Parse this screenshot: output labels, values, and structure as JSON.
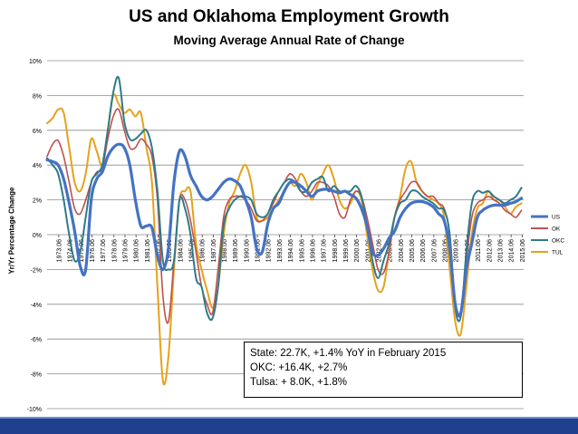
{
  "chart_data": {
    "type": "line",
    "title": "US and Oklahoma Employment Growth",
    "subtitle": "Moving Average Annual Rate of Change",
    "ylabel": "Yr/Yr Percentage Change",
    "ylim": [
      -0.1,
      0.1
    ],
    "yticks": [
      "10%",
      "8%",
      "6%",
      "4%",
      "2%",
      "0%",
      "-2%",
      "-4%",
      "-6%",
      "-8%",
      "-10%"
    ],
    "xlim": [
      1972.0,
      2015.2
    ],
    "xticks": [
      "1973.06",
      "1974.06",
      "1975.06",
      "1976.06",
      "1977.06",
      "1978.06",
      "1979.06",
      "1980.06",
      "1981.06",
      "1982.06",
      "1983.06",
      "1984.06",
      "1985.06",
      "1986.06",
      "1987.06",
      "1988.06",
      "1989.06",
      "1990.06",
      "1991.06",
      "1992.06",
      "1993.06",
      "1994.06",
      "1995.06",
      "1996.06",
      "1997.06",
      "1998.06",
      "1999.06",
      "2000.06",
      "2001.06",
      "2002.06",
      "2003.06",
      "2004.06",
      "2005.06",
      "2006.06",
      "2007.06",
      "2008.06",
      "2009.06",
      "2010.06",
      "2011.06",
      "2012.06",
      "2013.06",
      "2014.06",
      "2015.06"
    ],
    "grid": true,
    "legend_position": "right",
    "series": [
      {
        "name": "US",
        "color": "#4472c4",
        "x": [
          1972.0,
          1972.5,
          1973.0,
          1973.5,
          1974.0,
          1974.5,
          1975.0,
          1975.5,
          1976.0,
          1976.5,
          1977.0,
          1977.5,
          1978.0,
          1978.5,
          1979.0,
          1979.5,
          1980.0,
          1980.5,
          1981.0,
          1981.5,
          1982.0,
          1982.5,
          1983.0,
          1983.5,
          1984.0,
          1984.5,
          1985.0,
          1985.5,
          1986.0,
          1986.5,
          1987.0,
          1987.5,
          1988.0,
          1988.5,
          1989.0,
          1989.5,
          1990.0,
          1990.5,
          1991.0,
          1991.5,
          1992.0,
          1992.5,
          1993.0,
          1993.5,
          1994.0,
          1994.5,
          1995.0,
          1995.5,
          1996.0,
          1996.5,
          1997.0,
          1997.5,
          1998.0,
          1998.5,
          1999.0,
          1999.5,
          2000.0,
          2000.5,
          2001.0,
          2001.5,
          2002.0,
          2002.5,
          2003.0,
          2003.5,
          2004.0,
          2004.5,
          2005.0,
          2005.5,
          2006.0,
          2006.5,
          2007.0,
          2007.5,
          2008.0,
          2008.5,
          2009.0,
          2009.5,
          2010.0,
          2010.5,
          2011.0,
          2011.5,
          2012.0,
          2012.5,
          2013.0,
          2013.5,
          2014.0,
          2014.5,
          2015.0
        ],
        "values": [
          0.043,
          0.042,
          0.04,
          0.032,
          0.018,
          0.002,
          -0.018,
          -0.02,
          0.02,
          0.032,
          0.036,
          0.045,
          0.05,
          0.052,
          0.05,
          0.04,
          0.02,
          0.005,
          0.005,
          0.004,
          -0.012,
          -0.02,
          -0.008,
          0.03,
          0.048,
          0.045,
          0.034,
          0.028,
          0.022,
          0.02,
          0.022,
          0.026,
          0.03,
          0.032,
          0.031,
          0.028,
          0.02,
          0.01,
          -0.008,
          -0.01,
          0.006,
          0.015,
          0.018,
          0.025,
          0.03,
          0.03,
          0.028,
          0.025,
          0.022,
          0.025,
          0.026,
          0.026,
          0.025,
          0.024,
          0.025,
          0.023,
          0.021,
          0.015,
          0.005,
          -0.01,
          -0.012,
          -0.008,
          -0.002,
          0.002,
          0.01,
          0.015,
          0.018,
          0.019,
          0.019,
          0.018,
          0.016,
          0.012,
          0.008,
          -0.008,
          -0.04,
          -0.045,
          -0.02,
          -0.005,
          0.01,
          0.014,
          0.016,
          0.017,
          0.017,
          0.017,
          0.018,
          0.019,
          0.021
        ]
      },
      {
        "name": "OK",
        "color": "#c0504d",
        "x": [
          1972.0,
          1972.5,
          1973.0,
          1973.5,
          1974.0,
          1974.5,
          1975.0,
          1975.5,
          1976.0,
          1976.5,
          1977.0,
          1977.5,
          1978.0,
          1978.5,
          1979.0,
          1979.5,
          1980.0,
          1980.5,
          1981.0,
          1981.5,
          1982.0,
          1982.5,
          1983.0,
          1983.5,
          1984.0,
          1984.5,
          1985.0,
          1985.5,
          1986.0,
          1986.5,
          1987.0,
          1987.5,
          1988.0,
          1988.5,
          1989.0,
          1989.5,
          1990.0,
          1990.5,
          1991.0,
          1991.5,
          1992.0,
          1992.5,
          1993.0,
          1993.5,
          1994.0,
          1994.5,
          1995.0,
          1995.5,
          1996.0,
          1996.5,
          1997.0,
          1997.5,
          1998.0,
          1998.5,
          1999.0,
          1999.5,
          2000.0,
          2000.5,
          2001.0,
          2001.5,
          2002.0,
          2002.5,
          2003.0,
          2003.5,
          2004.0,
          2004.5,
          2005.0,
          2005.5,
          2006.0,
          2006.5,
          2007.0,
          2007.5,
          2008.0,
          2008.5,
          2009.0,
          2009.5,
          2010.0,
          2010.5,
          2011.0,
          2011.5,
          2012.0,
          2012.5,
          2013.0,
          2013.5,
          2014.0,
          2014.5,
          2015.0
        ],
        "values": [
          0.045,
          0.052,
          0.054,
          0.045,
          0.03,
          0.015,
          0.012,
          0.02,
          0.03,
          0.036,
          0.038,
          0.055,
          0.068,
          0.072,
          0.06,
          0.05,
          0.05,
          0.055,
          0.052,
          0.045,
          0.02,
          -0.035,
          -0.05,
          -0.015,
          0.02,
          0.02,
          0.008,
          -0.01,
          -0.03,
          -0.04,
          -0.045,
          -0.02,
          0.01,
          0.02,
          0.022,
          0.022,
          0.02,
          0.015,
          0.008,
          0.008,
          0.012,
          0.018,
          0.025,
          0.03,
          0.035,
          0.032,
          0.025,
          0.022,
          0.025,
          0.03,
          0.03,
          0.028,
          0.022,
          0.012,
          0.01,
          0.02,
          0.025,
          0.022,
          0.01,
          -0.005,
          -0.02,
          -0.022,
          -0.01,
          0.01,
          0.02,
          0.025,
          0.03,
          0.03,
          0.025,
          0.022,
          0.022,
          0.018,
          0.015,
          0.0,
          -0.04,
          -0.045,
          -0.015,
          0.01,
          0.018,
          0.02,
          0.022,
          0.02,
          0.018,
          0.014,
          0.012,
          0.01,
          0.014
        ]
      },
      {
        "name": "OKC",
        "color": "#2e7b8a",
        "x": [
          1972.0,
          1972.5,
          1973.0,
          1973.5,
          1974.0,
          1974.5,
          1975.0,
          1975.5,
          1976.0,
          1976.5,
          1977.0,
          1977.5,
          1978.0,
          1978.5,
          1979.0,
          1979.5,
          1980.0,
          1980.5,
          1981.0,
          1981.5,
          1982.0,
          1982.5,
          1983.0,
          1983.5,
          1984.0,
          1984.5,
          1985.0,
          1985.5,
          1986.0,
          1986.5,
          1987.0,
          1987.5,
          1988.0,
          1988.5,
          1989.0,
          1989.5,
          1990.0,
          1990.5,
          1991.0,
          1991.5,
          1992.0,
          1992.5,
          1993.0,
          1993.5,
          1994.0,
          1994.5,
          1995.0,
          1995.5,
          1996.0,
          1996.5,
          1997.0,
          1997.5,
          1998.0,
          1998.5,
          1999.0,
          1999.5,
          2000.0,
          2000.5,
          2001.0,
          2001.5,
          2002.0,
          2002.5,
          2003.0,
          2003.5,
          2004.0,
          2004.5,
          2005.0,
          2005.5,
          2006.0,
          2006.5,
          2007.0,
          2007.5,
          2008.0,
          2008.5,
          2009.0,
          2009.5,
          2010.0,
          2010.5,
          2011.0,
          2011.5,
          2012.0,
          2012.5,
          2013.0,
          2013.5,
          2014.0,
          2014.5,
          2015.0
        ],
        "values": [
          0.044,
          0.04,
          0.035,
          0.02,
          0.0,
          -0.015,
          -0.01,
          0.01,
          0.03,
          0.035,
          0.04,
          0.06,
          0.082,
          0.09,
          0.065,
          0.055,
          0.055,
          0.058,
          0.06,
          0.05,
          0.025,
          -0.015,
          -0.02,
          -0.015,
          0.02,
          0.015,
          0.0,
          -0.025,
          -0.03,
          -0.045,
          -0.048,
          -0.03,
          0.005,
          0.015,
          0.02,
          0.022,
          0.022,
          0.02,
          0.012,
          0.01,
          0.012,
          0.02,
          0.025,
          0.03,
          0.032,
          0.03,
          0.025,
          0.025,
          0.03,
          0.032,
          0.033,
          0.025,
          0.028,
          0.025,
          0.025,
          0.025,
          0.028,
          0.022,
          0.005,
          -0.015,
          -0.025,
          -0.015,
          -0.005,
          0.01,
          0.018,
          0.02,
          0.025,
          0.025,
          0.022,
          0.02,
          0.018,
          0.015,
          0.014,
          0.0,
          -0.042,
          -0.047,
          -0.01,
          0.018,
          0.025,
          0.024,
          0.025,
          0.022,
          0.02,
          0.018,
          0.02,
          0.022,
          0.027
        ]
      },
      {
        "name": "TUL",
        "color": "#e5a21a",
        "x": [
          1972.0,
          1972.5,
          1973.0,
          1973.5,
          1974.0,
          1974.5,
          1975.0,
          1975.5,
          1976.0,
          1976.5,
          1977.0,
          1977.5,
          1978.0,
          1978.5,
          1979.0,
          1979.5,
          1980.0,
          1980.5,
          1981.0,
          1981.5,
          1982.0,
          1982.5,
          1983.0,
          1983.5,
          1984.0,
          1984.5,
          1985.0,
          1985.5,
          1986.0,
          1986.5,
          1987.0,
          1987.5,
          1988.0,
          1988.5,
          1989.0,
          1989.5,
          1990.0,
          1990.5,
          1991.0,
          1991.5,
          1992.0,
          1992.5,
          1993.0,
          1993.5,
          1994.0,
          1994.5,
          1995.0,
          1995.5,
          1996.0,
          1996.5,
          1997.0,
          1997.5,
          1998.0,
          1998.5,
          1999.0,
          1999.5,
          2000.0,
          2000.5,
          2001.0,
          2001.5,
          2002.0,
          2002.5,
          2003.0,
          2003.5,
          2004.0,
          2004.5,
          2005.0,
          2005.5,
          2006.0,
          2006.5,
          2007.0,
          2007.5,
          2008.0,
          2008.5,
          2009.0,
          2009.5,
          2010.0,
          2010.5,
          2011.0,
          2011.5,
          2012.0,
          2012.5,
          2013.0,
          2013.5,
          2014.0,
          2014.5,
          2015.0
        ],
        "values": [
          0.064,
          0.067,
          0.072,
          0.07,
          0.05,
          0.03,
          0.025,
          0.035,
          0.055,
          0.048,
          0.04,
          0.06,
          0.08,
          0.075,
          0.07,
          0.072,
          0.068,
          0.07,
          0.05,
          0.03,
          -0.03,
          -0.084,
          -0.07,
          -0.02,
          0.02,
          0.025,
          0.025,
          -0.005,
          -0.02,
          -0.032,
          -0.042,
          -0.03,
          0.0,
          0.018,
          0.025,
          0.035,
          0.04,
          0.03,
          0.01,
          0.008,
          0.01,
          0.015,
          0.02,
          0.025,
          0.03,
          0.028,
          0.035,
          0.03,
          0.02,
          0.028,
          0.035,
          0.04,
          0.032,
          0.02,
          0.015,
          0.018,
          0.025,
          0.02,
          0.0,
          -0.02,
          -0.032,
          -0.03,
          -0.01,
          0.01,
          0.022,
          0.038,
          0.042,
          0.03,
          0.025,
          0.022,
          0.02,
          0.018,
          0.01,
          -0.02,
          -0.05,
          -0.057,
          -0.03,
          0.0,
          0.015,
          0.018,
          0.025,
          0.02,
          0.02,
          0.016,
          0.012,
          0.016,
          0.018
        ]
      }
    ],
    "annotation_lines": [
      "State:  22.7K, +1.4% YoY in February 2015",
      "OKC:  +16.4K, +2.7%",
      "Tulsa: + 8.0K, +1.8%"
    ]
  }
}
